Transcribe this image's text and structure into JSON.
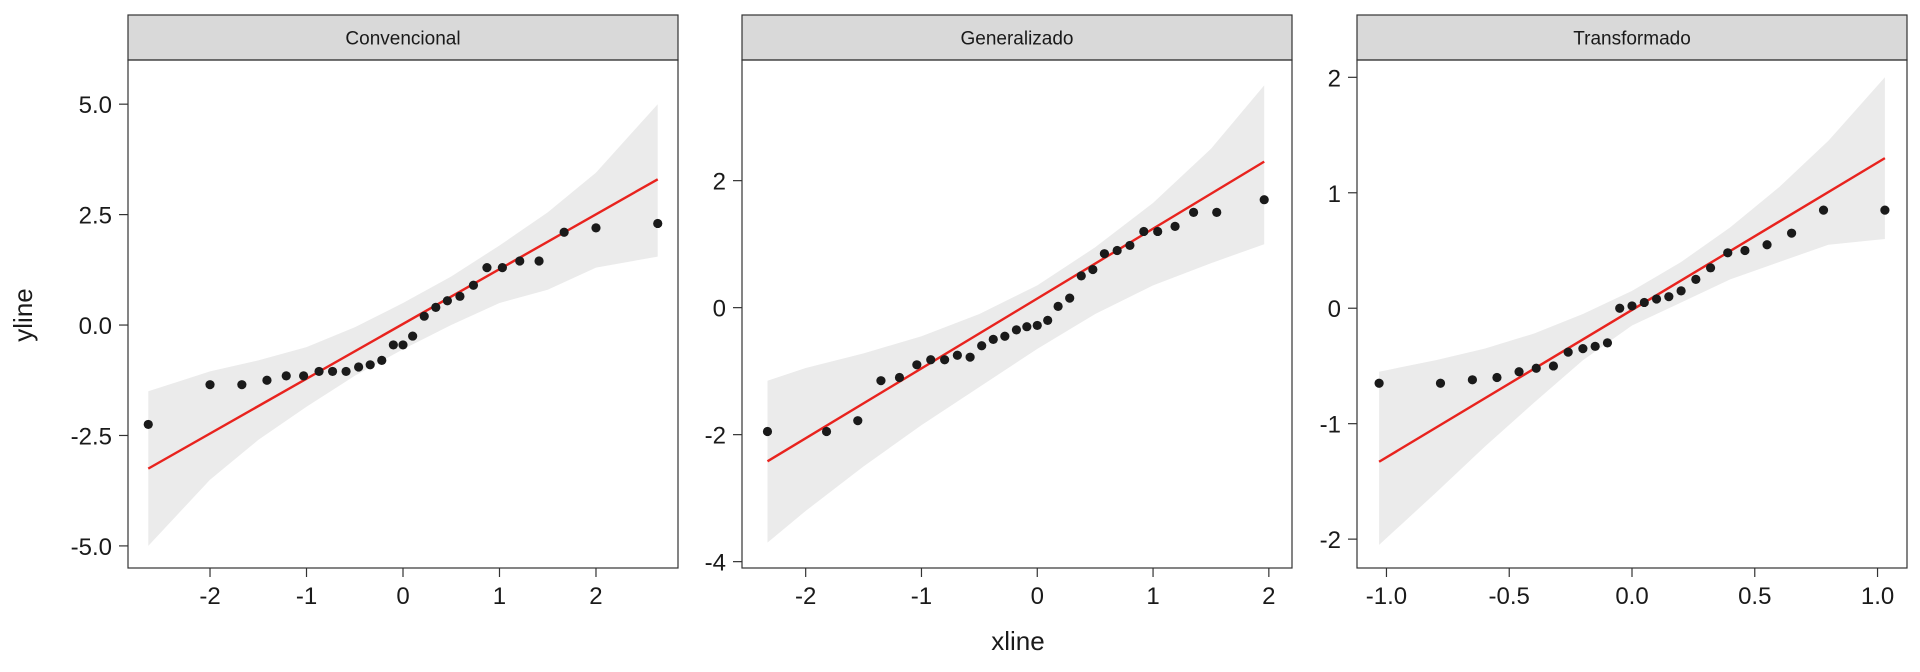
{
  "chart_data": {
    "type": "scatter",
    "xlabel": "xline",
    "ylabel": "yline",
    "colors": {
      "points": "#1a1a1a",
      "line": "#e8231e",
      "band": "#ebebeb",
      "strip": "#d9d9d9",
      "border": "#333333"
    },
    "panels": [
      {
        "title": "Convencional",
        "xlim": [
          -2.85,
          2.85
        ],
        "ylim": [
          -5.5,
          6.0
        ],
        "xticks": [
          -2,
          -1,
          0,
          1,
          2
        ],
        "xtick_labels": [
          "-2",
          "-1",
          "0",
          "1",
          "2"
        ],
        "yticks": [
          -5,
          -2.5,
          0,
          2.5,
          5
        ],
        "ytick_labels": [
          "-5.0",
          "-2.5",
          "0.0",
          "2.5",
          "5.0"
        ],
        "line": {
          "x": [
            -2.64,
            2.64
          ],
          "y": [
            -3.25,
            3.3
          ]
        },
        "band": {
          "x": [
            -2.64,
            -2.0,
            -1.5,
            -1.0,
            -0.5,
            0.0,
            0.5,
            1.0,
            1.5,
            2.0,
            2.64
          ],
          "upper": [
            -1.5,
            -1.05,
            -0.8,
            -0.5,
            -0.05,
            0.5,
            1.1,
            1.8,
            2.55,
            3.45,
            5.0
          ],
          "lower": [
            -5.0,
            -3.5,
            -2.6,
            -1.85,
            -1.15,
            -0.55,
            0.0,
            0.5,
            0.8,
            1.3,
            1.55
          ]
        },
        "x": [
          -2.64,
          -2.0,
          -1.67,
          -1.41,
          -1.21,
          -1.03,
          -0.87,
          -0.73,
          -0.59,
          -0.46,
          -0.34,
          -0.22,
          -0.1,
          0.0,
          0.1,
          0.22,
          0.34,
          0.46,
          0.59,
          0.73,
          0.87,
          1.03,
          1.21,
          1.41,
          1.67,
          2.0,
          2.64
        ],
        "y": [
          -2.25,
          -1.35,
          -1.35,
          -1.25,
          -1.15,
          -1.15,
          -1.05,
          -1.05,
          -1.05,
          -0.95,
          -0.9,
          -0.8,
          -0.45,
          -0.45,
          -0.25,
          0.2,
          0.4,
          0.55,
          0.65,
          0.9,
          1.3,
          1.3,
          1.45,
          1.45,
          2.1,
          2.2,
          2.3
        ]
      },
      {
        "title": "Generalizado",
        "xlim": [
          -2.55,
          2.2
        ],
        "ylim": [
          -4.1,
          3.9
        ],
        "xticks": [
          -2,
          -1,
          0,
          1,
          2
        ],
        "xtick_labels": [
          "-2",
          "-1",
          "0",
          "1",
          "2"
        ],
        "yticks": [
          -4,
          -2,
          0,
          2
        ],
        "ytick_labels": [
          "-4",
          "-2",
          "0",
          "2"
        ],
        "line": {
          "x": [
            -2.33,
            1.96
          ],
          "y": [
            -2.42,
            2.3
          ]
        },
        "band": {
          "x": [
            -2.33,
            -2.0,
            -1.5,
            -1.0,
            -0.5,
            0.0,
            0.5,
            1.0,
            1.5,
            1.96
          ],
          "upper": [
            -1.15,
            -0.95,
            -0.72,
            -0.45,
            -0.1,
            0.35,
            0.95,
            1.65,
            2.5,
            3.5
          ],
          "lower": [
            -3.7,
            -3.2,
            -2.5,
            -1.85,
            -1.25,
            -0.65,
            -0.1,
            0.35,
            0.7,
            1.0
          ]
        },
        "x": [
          -2.33,
          -1.82,
          -1.55,
          -1.35,
          -1.19,
          -1.04,
          -0.92,
          -0.8,
          -0.69,
          -0.58,
          -0.48,
          -0.38,
          -0.28,
          -0.18,
          -0.09,
          0.0,
          0.09,
          0.18,
          0.28,
          0.38,
          0.48,
          0.58,
          0.69,
          0.8,
          0.92,
          1.04,
          1.19,
          1.35,
          1.55,
          1.96
        ],
        "y": [
          -1.95,
          -1.95,
          -1.78,
          -1.15,
          -1.1,
          -0.9,
          -0.82,
          -0.82,
          -0.75,
          -0.78,
          -0.6,
          -0.5,
          -0.45,
          -0.35,
          -0.3,
          -0.28,
          -0.2,
          0.02,
          0.15,
          0.5,
          0.6,
          0.85,
          0.9,
          0.98,
          1.2,
          1.2,
          1.28,
          1.5,
          1.5,
          1.7
        ]
      },
      {
        "title": "Transformado",
        "xlim": [
          -1.12,
          1.12
        ],
        "ylim": [
          -2.25,
          2.15
        ],
        "xticks": [
          -1.0,
          -0.5,
          0.0,
          0.5,
          1.0
        ],
        "xtick_labels": [
          "-1.0",
          "-0.5",
          "0.0",
          "0.5",
          "1.0"
        ],
        "yticks": [
          -2,
          -1,
          0,
          1,
          2
        ],
        "ytick_labels": [
          "-2",
          "-1",
          "0",
          "1",
          "2"
        ],
        "line": {
          "x": [
            -1.03,
            1.03
          ],
          "y": [
            -1.33,
            1.3
          ]
        },
        "band": {
          "x": [
            -1.03,
            -0.8,
            -0.6,
            -0.4,
            -0.2,
            0.0,
            0.2,
            0.4,
            0.6,
            0.8,
            1.03
          ],
          "upper": [
            -0.55,
            -0.45,
            -0.35,
            -0.22,
            -0.05,
            0.15,
            0.4,
            0.7,
            1.05,
            1.45,
            2.0
          ],
          "lower": [
            -2.05,
            -1.6,
            -1.2,
            -0.82,
            -0.45,
            -0.15,
            0.05,
            0.25,
            0.4,
            0.55,
            0.6
          ]
        },
        "x": [
          -1.03,
          -0.78,
          -0.65,
          -0.55,
          -0.46,
          -0.39,
          -0.32,
          -0.26,
          -0.2,
          -0.15,
          -0.1,
          -0.05,
          0.0,
          0.05,
          0.1,
          0.15,
          0.2,
          0.26,
          0.32,
          0.39,
          0.46,
          0.55,
          0.65,
          0.78,
          1.03
        ],
        "y": [
          -0.65,
          -0.65,
          -0.62,
          -0.6,
          -0.55,
          -0.52,
          -0.5,
          -0.38,
          -0.35,
          -0.33,
          -0.3,
          0.0,
          0.02,
          0.05,
          0.08,
          0.1,
          0.15,
          0.25,
          0.35,
          0.48,
          0.5,
          0.55,
          0.65,
          0.85,
          0.85
        ]
      }
    ]
  }
}
